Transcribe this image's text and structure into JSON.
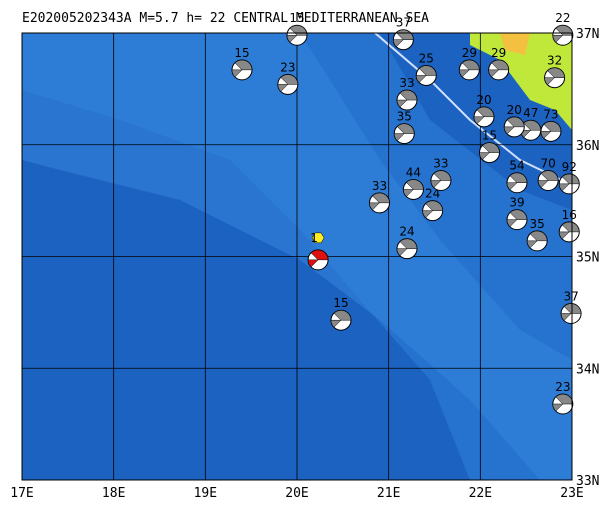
{
  "title": "E202005202343A M=5.7 h= 22 CENTRAL MEDITERRANEAN SEA",
  "xlim": [
    17,
    23
  ],
  "ylim": [
    33,
    37
  ],
  "lon_ticks": [
    {
      "value": 17,
      "label": "17E"
    },
    {
      "value": 18,
      "label": "18E"
    },
    {
      "value": 19,
      "label": "19E"
    },
    {
      "value": 20,
      "label": "20E"
    },
    {
      "value": 21,
      "label": "21E"
    },
    {
      "value": 22,
      "label": "22E"
    },
    {
      "value": 23,
      "label": "23E"
    }
  ],
  "lat_ticks": [
    {
      "value": 33,
      "label": "33N"
    },
    {
      "value": 34,
      "label": "34N"
    },
    {
      "value": 35,
      "label": "35N"
    },
    {
      "value": 36,
      "label": "36N"
    },
    {
      "value": 37,
      "label": "37N"
    }
  ],
  "main_event": {
    "label": "1",
    "lon": 20.23,
    "lat": 34.97
  },
  "events": [
    {
      "lon": 19.4,
      "lat": 36.67,
      "depth": 15
    },
    {
      "lon": 19.9,
      "lat": 36.54,
      "depth": 23
    },
    {
      "lon": 20.0,
      "lat": 36.98,
      "depth": 15
    },
    {
      "lon": 20.48,
      "lat": 34.43,
      "depth": 15
    },
    {
      "lon": 20.9,
      "lat": 35.48,
      "depth": 33
    },
    {
      "lon": 21.2,
      "lat": 35.07,
      "depth": 24
    },
    {
      "lon": 21.27,
      "lat": 35.6,
      "depth": 44
    },
    {
      "lon": 21.48,
      "lat": 35.41,
      "depth": 24
    },
    {
      "lon": 21.57,
      "lat": 35.68,
      "depth": 33
    },
    {
      "lon": 22.4,
      "lat": 35.66,
      "depth": 54
    },
    {
      "lon": 22.4,
      "lat": 35.33,
      "depth": 39
    },
    {
      "lon": 22.62,
      "lat": 35.14,
      "depth": 35
    },
    {
      "lon": 22.97,
      "lat": 35.22,
      "depth": 16
    },
    {
      "lon": 22.99,
      "lat": 34.49,
      "depth": 37
    },
    {
      "lon": 22.9,
      "lat": 33.68,
      "depth": 23
    },
    {
      "lon": 22.77,
      "lat": 36.12,
      "depth": 73
    },
    {
      "lon": 22.55,
      "lat": 36.13,
      "depth": 47
    },
    {
      "lon": 22.37,
      "lat": 36.16,
      "depth": 20
    },
    {
      "lon": 22.04,
      "lat": 36.25,
      "depth": 20
    },
    {
      "lon": 21.41,
      "lat": 36.62,
      "depth": 25
    },
    {
      "lon": 21.2,
      "lat": 36.4,
      "depth": 33
    },
    {
      "lon": 21.17,
      "lat": 36.1,
      "depth": 35
    },
    {
      "lon": 21.88,
      "lat": 36.67,
      "depth": 29
    },
    {
      "lon": 22.2,
      "lat": 36.67,
      "depth": 29
    },
    {
      "lon": 21.16,
      "lat": 36.94,
      "depth": 37
    },
    {
      "lon": 22.74,
      "lat": 35.68,
      "depth": 70
    },
    {
      "lon": 22.97,
      "lat": 35.65,
      "depth": 92
    },
    {
      "lon": 22.1,
      "lat": 35.93,
      "depth": 15
    },
    {
      "lon": 22.9,
      "lat": 36.98,
      "depth": 22
    },
    {
      "lon": 22.81,
      "lat": 36.6,
      "depth": 32
    }
  ]
}
